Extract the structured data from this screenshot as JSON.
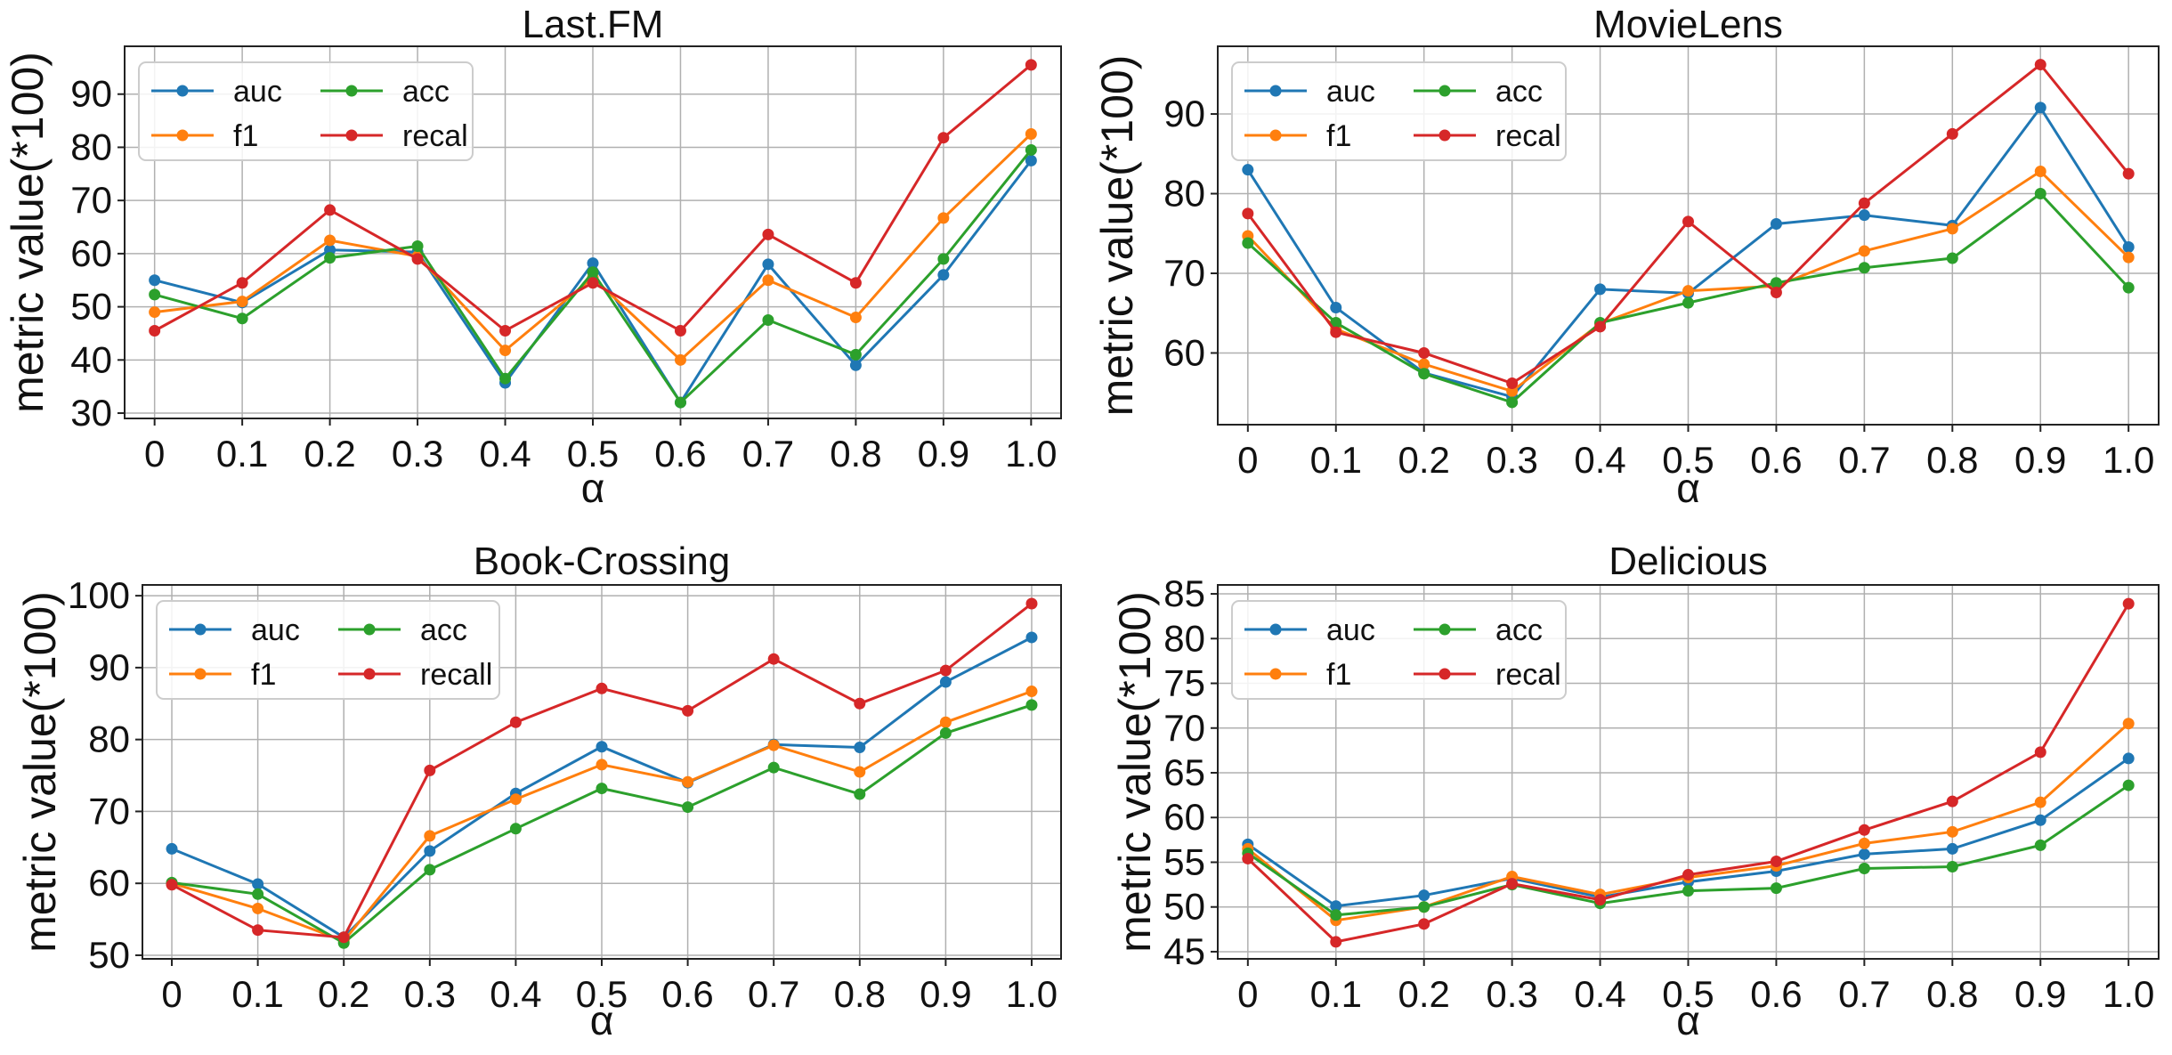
{
  "chart_data": [
    {
      "type": "line",
      "title": "Last.FM",
      "xlabel": "α",
      "ylabel": "metric value(*100)",
      "categories": [
        "0",
        "0.1",
        "0.2",
        "0.3",
        "0.4",
        "0.5",
        "0.6",
        "0.7",
        "0.8",
        "0.9",
        "1.0"
      ],
      "ylim": [
        29,
        99
      ],
      "yticks": [
        30,
        40,
        50,
        60,
        70,
        80,
        90
      ],
      "grid": true,
      "legend_position": "upper-left",
      "legend_columns": 2,
      "series": [
        {
          "name": "auc",
          "color": "#1f77b4",
          "values": [
            55.0,
            50.8,
            60.7,
            60.3,
            35.7,
            58.2,
            32.0,
            58.0,
            39.0,
            56.0,
            77.5
          ]
        },
        {
          "name": "f1",
          "color": "#ff7f0e",
          "values": [
            49.0,
            51.0,
            62.5,
            59.5,
            41.8,
            55.5,
            40.0,
            55.0,
            48.0,
            66.7,
            82.5
          ]
        },
        {
          "name": "acc",
          "color": "#2ca02c",
          "values": [
            52.3,
            47.8,
            59.2,
            61.4,
            36.5,
            56.5,
            32.0,
            47.5,
            41.0,
            59.0,
            79.5
          ]
        },
        {
          "name": "recal",
          "color": "#d62728",
          "values": [
            45.5,
            54.5,
            68.2,
            59.0,
            45.5,
            54.5,
            45.5,
            63.6,
            54.5,
            81.8,
            95.5
          ]
        }
      ]
    },
    {
      "type": "line",
      "title": "MovieLens",
      "xlabel": "α",
      "ylabel": "metric value(*100)",
      "categories": [
        "0",
        "0.1",
        "0.2",
        "0.3",
        "0.4",
        "0.5",
        "0.6",
        "0.7",
        "0.8",
        "0.9",
        "1.0"
      ],
      "ylim": [
        51,
        98.5
      ],
      "yticks": [
        60,
        70,
        80,
        90
      ],
      "grid": true,
      "legend_position": "upper-left",
      "legend_columns": 2,
      "series": [
        {
          "name": "auc",
          "color": "#1f77b4",
          "values": [
            83.0,
            65.7,
            57.5,
            54.5,
            68.0,
            67.5,
            76.2,
            77.3,
            76.0,
            90.8,
            73.3
          ]
        },
        {
          "name": "f1",
          "color": "#ff7f0e",
          "values": [
            74.7,
            63.0,
            58.6,
            55.2,
            63.7,
            67.8,
            68.4,
            72.8,
            75.6,
            82.8,
            72.0
          ]
        },
        {
          "name": "acc",
          "color": "#2ca02c",
          "values": [
            73.8,
            63.8,
            57.4,
            53.8,
            63.8,
            66.3,
            68.8,
            70.7,
            71.9,
            80.0,
            68.2
          ]
        },
        {
          "name": "recal",
          "color": "#d62728",
          "values": [
            77.5,
            62.6,
            60.0,
            56.2,
            63.3,
            76.5,
            67.6,
            78.8,
            87.5,
            96.2,
            82.5
          ]
        }
      ]
    },
    {
      "type": "line",
      "title": "Book-Crossing",
      "xlabel": "α",
      "ylabel": "metric value(*100)",
      "categories": [
        "0",
        "0.1",
        "0.2",
        "0.3",
        "0.4",
        "0.5",
        "0.6",
        "0.7",
        "0.8",
        "0.9",
        "1.0"
      ],
      "ylim": [
        49.5,
        101.5
      ],
      "yticks": [
        50,
        60,
        70,
        80,
        90,
        100
      ],
      "grid": true,
      "legend_position": "upper-left",
      "legend_columns": 2,
      "series": [
        {
          "name": "auc",
          "color": "#1f77b4",
          "values": [
            64.8,
            59.9,
            52.5,
            64.5,
            72.5,
            79.0,
            74.0,
            79.3,
            78.9,
            88.0,
            94.2
          ]
        },
        {
          "name": "f1",
          "color": "#ff7f0e",
          "values": [
            60.0,
            56.5,
            52.0,
            66.6,
            71.7,
            76.5,
            74.1,
            79.2,
            75.5,
            82.4,
            86.7
          ]
        },
        {
          "name": "acc",
          "color": "#2ca02c",
          "values": [
            60.1,
            58.5,
            51.7,
            61.9,
            67.6,
            73.2,
            70.6,
            76.1,
            72.4,
            80.9,
            84.8
          ]
        },
        {
          "name": "recall",
          "color": "#d62728",
          "values": [
            59.8,
            53.5,
            52.5,
            75.7,
            82.4,
            87.1,
            84.0,
            91.2,
            85.0,
            89.6,
            98.9
          ]
        }
      ]
    },
    {
      "type": "line",
      "title": "Delicious",
      "xlabel": "α",
      "ylabel": "metric value(*100)",
      "categories": [
        "0",
        "0.1",
        "0.2",
        "0.3",
        "0.4",
        "0.5",
        "0.6",
        "0.7",
        "0.8",
        "0.9",
        "1.0"
      ],
      "ylim": [
        44.2,
        86.0
      ],
      "yticks": [
        45,
        50,
        55,
        60,
        65,
        70,
        75,
        80,
        85
      ],
      "grid": true,
      "legend_position": "upper-left",
      "legend_columns": 2,
      "series": [
        {
          "name": "auc",
          "color": "#1f77b4",
          "values": [
            57.0,
            50.1,
            51.3,
            53.2,
            51.1,
            52.8,
            54.0,
            55.9,
            56.5,
            59.7,
            66.6
          ]
        },
        {
          "name": "f1",
          "color": "#ff7f0e",
          "values": [
            56.5,
            48.5,
            50.0,
            53.4,
            51.4,
            53.3,
            54.6,
            57.1,
            58.4,
            61.7,
            70.5
          ]
        },
        {
          "name": "acc",
          "color": "#2ca02c",
          "values": [
            56.0,
            49.1,
            50.0,
            52.5,
            50.4,
            51.8,
            52.1,
            54.3,
            54.5,
            56.9,
            63.6
          ]
        },
        {
          "name": "recal",
          "color": "#d62728",
          "values": [
            55.4,
            46.1,
            48.1,
            52.6,
            50.8,
            53.6,
            55.1,
            58.6,
            61.8,
            67.3,
            83.9
          ]
        }
      ]
    }
  ]
}
